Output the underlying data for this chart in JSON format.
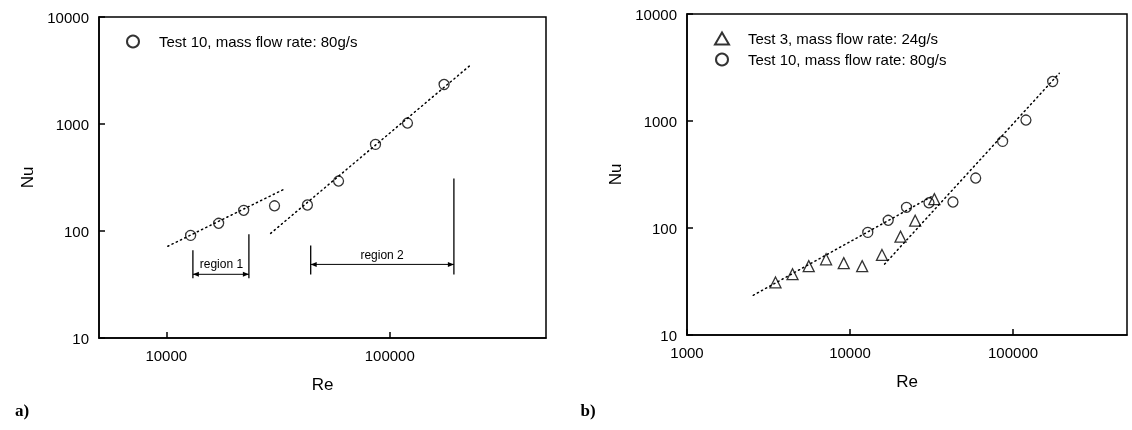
{
  "chart_data": [
    {
      "type": "scatter",
      "xlabel": "Re",
      "ylabel": "Nu",
      "xlim": [
        5000,
        500000
      ],
      "ylim": [
        10,
        10000
      ],
      "xticks": [
        10000,
        100000
      ],
      "yticks": [
        10,
        100,
        1000,
        10000
      ],
      "log": "xy",
      "legend": "top left",
      "series": [
        {
          "name": "Test 10, mass flow rate: 80g/s",
          "color": "#000000",
          "marker": "circle",
          "x": [
            12850,
            17150,
            22200,
            30500,
            42800,
            59000,
            86300,
            120000,
            175000
          ],
          "values": [
            91,
            118,
            156,
            172,
            175,
            293,
            645,
            1020,
            2340
          ]
        },
        {
          "type": "line",
          "color": "#000000",
          "line_style": "dotted",
          "marker": "none",
          "x": [
            10160,
            33300
          ],
          "values": [
            72,
            243
          ]
        },
        {
          "type": "line",
          "color": "#000000",
          "line_style": "dotted",
          "marker": "none",
          "x": [
            29300,
            227000
          ],
          "values": [
            95,
            3480
          ]
        }
      ],
      "annotations": [
        "region 1",
        "region 2",
        "a)"
      ]
    },
    {
      "type": "scatter",
      "xlabel": "Re",
      "ylabel": "Nu",
      "xlim": [
        1000,
        500000
      ],
      "ylim": [
        10,
        10000
      ],
      "xticks": [
        1000,
        10000,
        100000
      ],
      "yticks": [
        10,
        100,
        1000,
        10000
      ],
      "log": "xy",
      "legend": "top left",
      "series": [
        {
          "name": "Test 3, mass flow rate: 24g/s",
          "color": "#000000",
          "marker": "triangle",
          "x": [
            3490,
            4440,
            5580,
            7130,
            9150,
            11870,
            15700,
            20400,
            25100,
            32900
          ],
          "values": [
            31,
            37,
            44,
            51,
            47,
            44,
            56,
            83,
            117,
            186
          ]
        },
        {
          "name": "Test 10, mass flow rate: 80g/s",
          "color": "#000000",
          "marker": "circle",
          "x": [
            12850,
            17150,
            22200,
            30500,
            42800,
            59000,
            86300,
            120000,
            175000
          ],
          "values": [
            91,
            118,
            156,
            172,
            175,
            293,
            645,
            1020,
            2340
          ]
        },
        {
          "type": "line",
          "color": "#000000",
          "line_style": "dotted",
          "marker": "none",
          "x": [
            2550,
            32100
          ],
          "values": [
            23.5,
            199
          ]
        },
        {
          "type": "line",
          "color": "#000000",
          "line_style": "dotted",
          "marker": "none",
          "x": [
            16300,
            192000
          ],
          "values": [
            46,
            2790
          ]
        }
      ],
      "annotations": [
        "b)"
      ]
    }
  ]
}
